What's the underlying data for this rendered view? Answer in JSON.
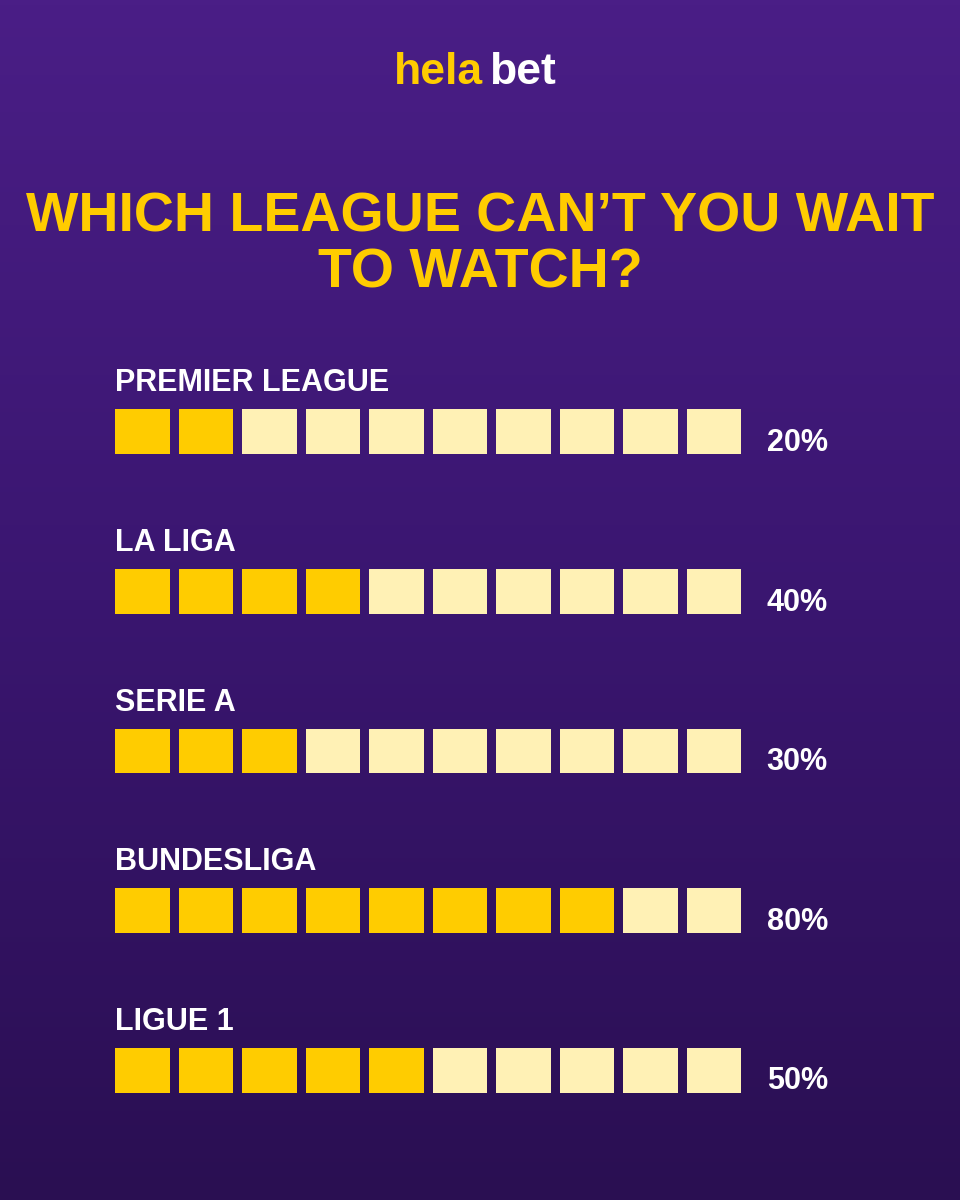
{
  "chart_data": {
    "type": "bar",
    "orientation": "horizontal",
    "brand": "hela bet",
    "title": "WHICH LEAGUE CAN’T YOU WAIT TO WATCH?",
    "categories": [
      "PREMIER LEAGUE",
      "LA LIGA",
      "SERIE A",
      "BUNDESLIGA",
      "LIGUE 1"
    ],
    "values": [
      20,
      40,
      30,
      80,
      50
    ],
    "value_labels": [
      "20%",
      "40%",
      "30%",
      "80%",
      "50%"
    ],
    "xlim": [
      0,
      100
    ],
    "color": "#FFCC00",
    "data_labels": true,
    "tick_labels": false
  }
}
